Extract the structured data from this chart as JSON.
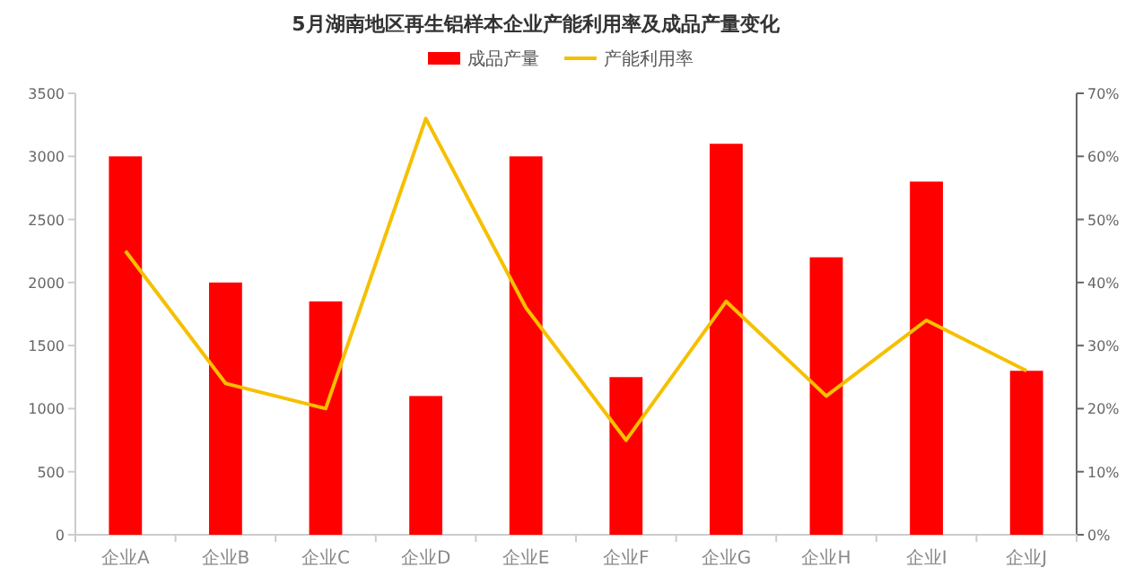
{
  "chart_data": {
    "type": "bar",
    "title": "5月湖南地区再生铝样本企业产能利用率及成品产量变化",
    "categories": [
      "企业A",
      "企业B",
      "企业C",
      "企业D",
      "企业E",
      "企业F",
      "企业G",
      "企业H",
      "企业I",
      "企业J"
    ],
    "series": [
      {
        "name": "成品产量",
        "color": "#ff0000",
        "values": [
          3000,
          2000,
          1850,
          1100,
          3000,
          1250,
          3100,
          2200,
          2800,
          1300
        ]
      },
      {
        "name": "产能利用率",
        "type": "line",
        "axis": "y2",
        "color": "#f5c000",
        "values": [
          45,
          24,
          20,
          66,
          36,
          15,
          37,
          22,
          34,
          26
        ]
      }
    ],
    "ylim": [
      0,
      3500
    ],
    "yticks": [
      0,
      500,
      1000,
      1500,
      2000,
      2500,
      3000,
      3500
    ],
    "y2lim": [
      0,
      70
    ],
    "y2ticks": [
      {
        "value": 0,
        "label": "0%"
      },
      {
        "value": 10,
        "label": "10%"
      },
      {
        "value": 20,
        "label": "20%"
      },
      {
        "value": 30,
        "label": "30%"
      },
      {
        "value": 40,
        "label": "40%"
      },
      {
        "value": 50,
        "label": "50%"
      },
      {
        "value": 60,
        "label": "60%"
      },
      {
        "value": 70,
        "label": "70%"
      }
    ],
    "legend": "top",
    "marker": "none"
  }
}
